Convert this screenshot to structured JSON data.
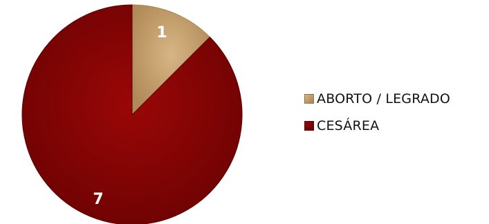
{
  "chart_data": {
    "type": "pie",
    "slices": [
      {
        "label": "ABORTO / LEGRADO",
        "value": 1,
        "color": "#c9a271",
        "dark": "#a8844f"
      },
      {
        "label": "CESÁREA",
        "value": 7,
        "color": "#8b0000",
        "dark": "#5e0303"
      }
    ],
    "data_labels": [
      "1",
      "7"
    ],
    "legend_position": "right"
  }
}
